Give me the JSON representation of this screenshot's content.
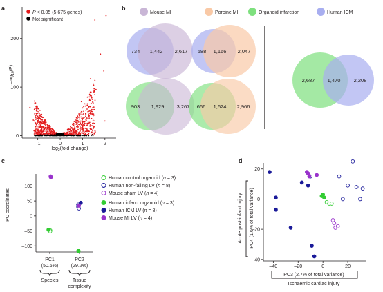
{
  "panels": {
    "a": {
      "label": "a",
      "legend": [
        {
          "text_pre": "",
          "italic": "P",
          "text_post": " < 0.05 (5,675 genes)",
          "color": "#e31a1c"
        },
        {
          "text_pre": "Not significant",
          "italic": "",
          "text_post": "",
          "color": "#000000"
        }
      ],
      "ylabel": {
        "pre": "–log",
        "sub": "10",
        "post": "(P)"
      },
      "xlabel": {
        "pre": "log",
        "sub": "2",
        "post": "(fold change)"
      },
      "chart_data": {
        "type": "scatter",
        "title": "",
        "xlim": [
          -1.7,
          2.5
        ],
        "ylim": [
          -5,
          265
        ],
        "xticks": [
          -1,
          0,
          1,
          2
        ],
        "yticks": [
          0,
          100,
          200
        ],
        "xtick_labels": [
          "–1",
          "0",
          "1",
          "2"
        ],
        "ytick_labels": [
          "0",
          "100",
          "200"
        ],
        "series": [
          {
            "label_ref": "significant",
            "points": [
              [
                2.05,
                247
              ],
              [
                1.55,
                238
              ],
              [
                1.8,
                168
              ],
              [
                1.95,
                133
              ],
              [
                1.35,
                117
              ],
              [
                0.95,
                70
              ],
              [
                1.55,
                42
              ],
              [
                1.2,
                36
              ],
              [
                2.0,
                30
              ],
              [
                -1.35,
                58
              ],
              [
                -1.0,
                40
              ],
              [
                -0.75,
                25
              ],
              [
                1.05,
                60
              ],
              [
                0.75,
                38
              ],
              [
                -1.2,
                32
              ],
              [
                1.6,
                95
              ],
              [
                1.4,
                80
              ],
              [
                -0.9,
                52
              ]
            ]
          }
        ]
      }
    },
    "b": {
      "label": "b",
      "legend": [
        {
          "text": "Mouse MI",
          "color": "#c9b6d6"
        },
        {
          "text": "Porcine MI",
          "color": "#f9c9a6"
        },
        {
          "text": "Organoid infarction",
          "color": "#7ee07e"
        },
        {
          "text": "Human ICM",
          "color": "#a8aef0"
        }
      ],
      "venns": [
        {
          "left": "734",
          "mid": "1,442",
          "right": "2,617",
          "left_color": "#a8aef0",
          "right_color": "#c9b6d6"
        },
        {
          "left": "588",
          "mid": "1,166",
          "right": "2,047",
          "left_color": "#a8aef0",
          "right_color": "#f9c9a6"
        },
        {
          "left": "903",
          "mid": "1,929",
          "right": "3,267",
          "left_color": "#7ee07e",
          "right_color": "#c9b6d6"
        },
        {
          "left": "666",
          "mid": "1,624",
          "right": "2,966",
          "left_color": "#7ee07e",
          "right_color": "#f9c9a6"
        },
        {
          "left": "2,687",
          "mid": "1,470",
          "right": "2,208",
          "left_color": "#7ee07e",
          "right_color": "#a8aef0"
        }
      ]
    },
    "c": {
      "label": "c",
      "ylabel": "PC coordinates",
      "xtick_labels": [
        "PC1",
        "PC2"
      ],
      "xtick_sub": [
        "(50.6%)",
        "(29.2%)"
      ],
      "group_labels": [
        "Species",
        "Tissue",
        "complexity"
      ],
      "legend": [
        {
          "text": "Human control organoid",
          "n": "3",
          "color": "#33cc33",
          "filled": false
        },
        {
          "text": "Human non-failing LV",
          "n": "8",
          "color": "#1a1a99",
          "filled": false
        },
        {
          "text": "Mouse sham LV",
          "n": "4",
          "color": "#9933cc",
          "filled": false
        },
        {
          "text": "Human infarct organoid",
          "n": "3",
          "color": "#33cc33",
          "filled": true
        },
        {
          "text": "Human ICM LV",
          "n": "8",
          "color": "#1a1a99",
          "filled": true
        },
        {
          "text": "Mouse MI LV",
          "n": "4",
          "color": "#9933cc",
          "filled": true
        }
      ],
      "chart_data": {
        "type": "scatter",
        "title": "",
        "ylim": [
          -120,
          140
        ],
        "yticks": [
          -100,
          -50,
          0,
          50,
          100
        ],
        "ytick_labels": [
          "–100",
          "–50",
          "0",
          "50",
          "100"
        ],
        "categories": [
          "PC1",
          "PC2"
        ],
        "series": [
          {
            "group": 0,
            "values": [
              [
                0,
                128
              ],
              [
                0,
                131
              ],
              [
                1,
                30
              ],
              [
                1,
                35
              ],
              [
                1,
                40
              ],
              [
                0,
                -48
              ],
              [
                1,
                -115
              ],
              [
                1,
                -118
              ]
            ]
          },
          {
            "group": 1,
            "values": [
              [
                0,
                130
              ],
              [
                0,
                133
              ],
              [
                1,
                25
              ],
              [
                1,
                42
              ],
              [
                0,
                -52
              ],
              [
                1,
                -116
              ]
            ]
          }
        ]
      }
    },
    "d": {
      "label": "d",
      "ylabel": "PC4 (1.6% of total variance)",
      "ylabel_outer": "Acute post-infarct injury",
      "xlabel": "PC3 (2.7% of total variance)",
      "xlabel_outer": "Ischaemic cardiac injury",
      "chart_data": {
        "type": "scatter",
        "title": "",
        "xlim": [
          -48,
          35
        ],
        "ylim": [
          -41,
          24
        ],
        "xticks": [
          -40,
          -20,
          0,
          20
        ],
        "yticks": [
          -40,
          -20,
          0,
          20
        ],
        "xtick_labels": [
          "–40",
          "–20",
          "0",
          "20"
        ],
        "ytick_labels": [
          "–40",
          "–20",
          "0",
          "20"
        ],
        "series": [
          {
            "name_ref": "Human ICM LV",
            "color": "#1a1a99",
            "filled": true,
            "points": [
              [
                -43,
                18
              ],
              [
                -38,
                1
              ],
              [
                -38,
                -7
              ],
              [
                -26,
                -19
              ],
              [
                -17,
                11
              ],
              [
                -12,
                9
              ],
              [
                -9,
                -31
              ],
              [
                -7,
                -38
              ]
            ]
          },
          {
            "name_ref": "Human non-failing LV",
            "color": "#1a1a99",
            "filled": false,
            "points": [
              [
                -10,
                15
              ],
              [
                13,
                15
              ],
              [
                20,
                9
              ],
              [
                16,
                0
              ],
              [
                24,
                25
              ],
              [
                27,
                8
              ],
              [
                32,
                7
              ],
              [
                30,
                0
              ]
            ]
          },
          {
            "name_ref": "Mouse MI LV",
            "color": "#9933cc",
            "filled": true,
            "points": [
              [
                -13,
                18
              ],
              [
                -12,
                17
              ],
              [
                -11,
                15
              ],
              [
                -5,
                16
              ]
            ]
          },
          {
            "name_ref": "Mouse sham LV",
            "color": "#9933cc",
            "filled": false,
            "points": [
              [
                8,
                -14
              ],
              [
                9,
                -16
              ],
              [
                10,
                -19
              ],
              [
                12,
                -18
              ]
            ]
          },
          {
            "name_ref": "Human infarct organoid",
            "color": "#33cc33",
            "filled": true,
            "points": [
              [
                -1,
                2
              ],
              [
                1,
                1
              ],
              [
                0,
                3
              ]
            ]
          },
          {
            "name_ref": "Human control organoid",
            "color": "#33cc33",
            "filled": false,
            "points": [
              [
                3,
                -2
              ],
              [
                5,
                -3
              ],
              [
                7,
                -3
              ]
            ]
          }
        ]
      }
    }
  }
}
